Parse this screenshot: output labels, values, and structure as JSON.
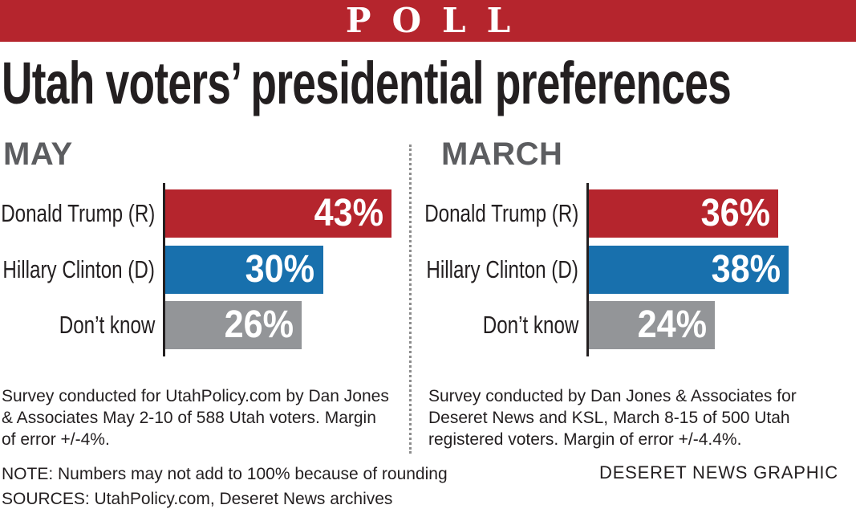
{
  "banner": "POLL",
  "title": "Utah voters’ presidential preferences",
  "colors": {
    "trump": "#b5252d",
    "clinton": "#1870ad",
    "dont_know": "#939598",
    "banner": "#b5252d"
  },
  "chart_data": [
    {
      "type": "bar",
      "title": "MAY",
      "categories": [
        "Donald Trump (R)",
        "Hillary Clinton (D)",
        "Don’t know"
      ],
      "values": [
        43,
        30,
        26
      ],
      "value_labels": [
        "43%",
        "30%",
        "26%"
      ],
      "unit": "%"
    },
    {
      "type": "bar",
      "title": "MARCH",
      "categories": [
        "Donald Trump (R)",
        "Hillary Clinton (D)",
        "Don’t know"
      ],
      "values": [
        36,
        38,
        24
      ],
      "value_labels": [
        "36%",
        "38%",
        "24%"
      ],
      "unit": "%"
    }
  ],
  "notes": {
    "may_survey": "Survey conducted for UtahPolicy.com by Dan Jones & Associates May 2-10 of 588 Utah voters. Margin of error +/-4%.",
    "march_survey": "Survey conducted by Dan Jones & Associates for Deseret News and KSL, March 8-15 of 500 Utah registered voters. Margin of error +/-4.4%.",
    "note": "NOTE: Numbers may not add to 100% because of rounding",
    "sources": "SOURCES: UtahPolicy.com, Deseret News archives",
    "credit": "DESERET NEWS GRAPHIC"
  }
}
